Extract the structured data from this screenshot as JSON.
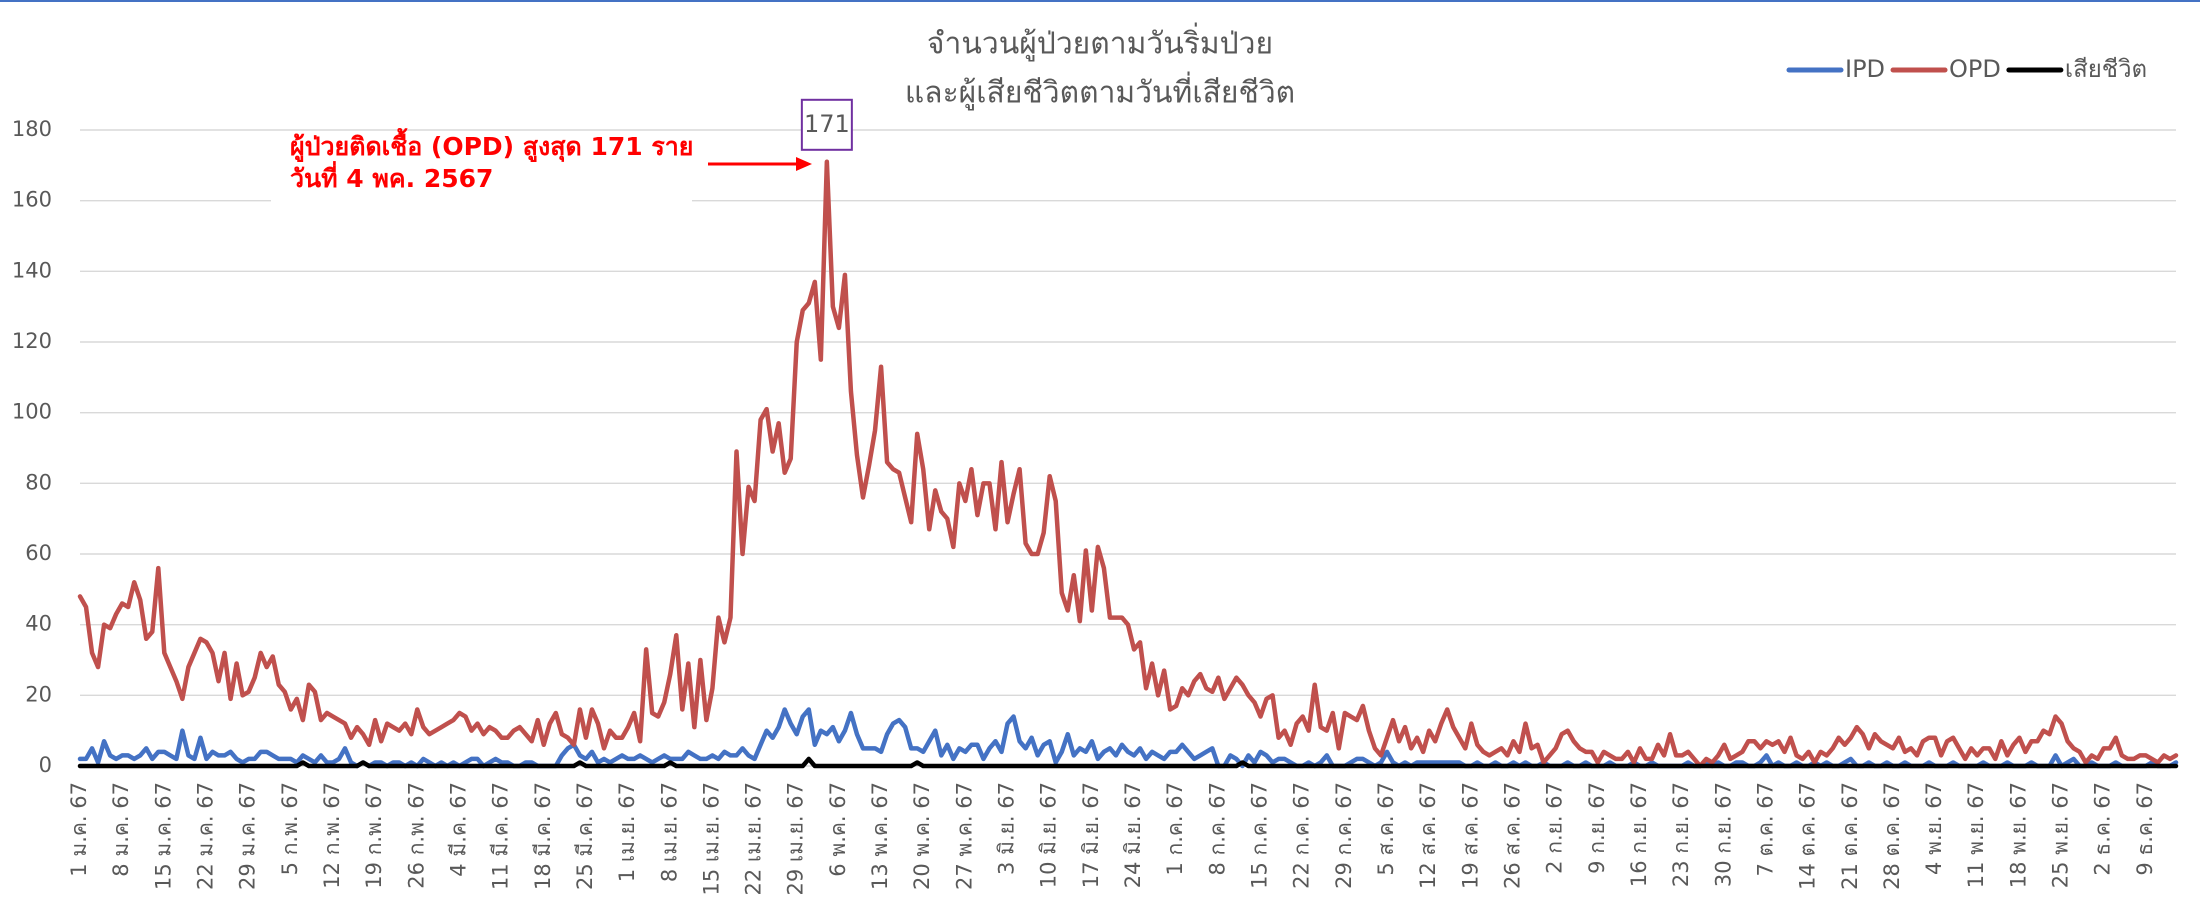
{
  "chart_data": {
    "type": "line",
    "title": [
      "จำนวนผู้ป่วยตามวันริ่มป่วย",
      "และผู้เสียชีวิตตามวันที่เสียชีวิต"
    ],
    "annotation": [
      "ผู้ป่วยติดเชื้อ (OPD) สูงสุด 171 ราย",
      "วันที่ 4 พค. 2567"
    ],
    "legend": "top-right",
    "grid": true,
    "ylim": [
      0,
      180
    ],
    "yticks": [
      0,
      20,
      40,
      60,
      80,
      100,
      120,
      140,
      160,
      180
    ],
    "categories": [
      "1 ม.ค. 67",
      null,
      null,
      null,
      null,
      null,
      null,
      "8 ม.ค. 67",
      null,
      null,
      null,
      null,
      null,
      null,
      "15 ม.ค. 67",
      null,
      null,
      null,
      null,
      null,
      null,
      "22 ม.ค. 67",
      null,
      null,
      null,
      null,
      null,
      null,
      "29 ม.ค. 67",
      null,
      null,
      null,
      null,
      null,
      null,
      "5 ก.พ. 67",
      null,
      null,
      null,
      null,
      null,
      null,
      "12 ก.พ. 67",
      null,
      null,
      null,
      null,
      null,
      null,
      "19 ก.พ. 67",
      null,
      null,
      null,
      null,
      null,
      null,
      "26 ก.พ. 67",
      null,
      null,
      null,
      null,
      null,
      null,
      "4 มี.ค. 67",
      null,
      null,
      null,
      null,
      null,
      null,
      "11 มี.ค. 67",
      null,
      null,
      null,
      null,
      null,
      null,
      "18 มี.ค. 67",
      null,
      null,
      null,
      null,
      null,
      null,
      "25 มี.ค. 67",
      null,
      null,
      null,
      null,
      null,
      null,
      "1 เม.ย. 67",
      null,
      null,
      null,
      null,
      null,
      null,
      "8 เม.ย. 67",
      null,
      null,
      null,
      null,
      null,
      null,
      "15 เม.ย. 67",
      null,
      null,
      null,
      null,
      null,
      null,
      "22 เม.ย. 67",
      null,
      null,
      null,
      null,
      null,
      null,
      "29 เม.ย. 67",
      null,
      null,
      null,
      null,
      null,
      null,
      "6 พ.ค. 67",
      null,
      null,
      null,
      null,
      null,
      null,
      "13 พ.ค. 67",
      null,
      null,
      null,
      null,
      null,
      null,
      "20 พ.ค. 67",
      null,
      null,
      null,
      null,
      null,
      null,
      "27 พ.ค. 67",
      null,
      null,
      null,
      null,
      null,
      null,
      "3 มิ.ย. 67",
      null,
      null,
      null,
      null,
      null,
      null,
      "10 มิ.ย. 67",
      null,
      null,
      null,
      null,
      null,
      null,
      "17 มิ.ย. 67",
      null,
      null,
      null,
      null,
      null,
      null,
      "24 มิ.ย. 67",
      null,
      null,
      null,
      null,
      null,
      null,
      "1 ก.ค. 67",
      null,
      null,
      null,
      null,
      null,
      null,
      "8 ก.ค. 67",
      null,
      null,
      null,
      null,
      null,
      null,
      "15 ก.ค. 67",
      null,
      null,
      null,
      null,
      null,
      null,
      "22 ก.ค. 67",
      null,
      null,
      null,
      null,
      null,
      null,
      "29 ก.ค. 67",
      null,
      null,
      null,
      null,
      null,
      null,
      "5 ส.ค. 67",
      null,
      null,
      null,
      null,
      null,
      null,
      "12 ส.ค. 67",
      null,
      null,
      null,
      null,
      null,
      null,
      "19 ส.ค. 67",
      null,
      null,
      null,
      null,
      null,
      null,
      "26 ส.ค. 67",
      null,
      null,
      null,
      null,
      null,
      null,
      "2 ก.ย. 67",
      null,
      null,
      null,
      null,
      null,
      null,
      "9 ก.ย. 67",
      null,
      null,
      null,
      null,
      null,
      null,
      "16 ก.ย. 67",
      null,
      null,
      null,
      null,
      null,
      null,
      "23 ก.ย. 67",
      null,
      null,
      null,
      null,
      null,
      null,
      "30 ก.ย. 67",
      null,
      null,
      null,
      null,
      null,
      null,
      "7 ต.ค. 67",
      null,
      null,
      null,
      null,
      null,
      null,
      "14 ต.ค. 67",
      null,
      null,
      null,
      null,
      null,
      null,
      "21 ต.ค. 67",
      null,
      null,
      null,
      null,
      null,
      null,
      "28 ต.ค. 67",
      null,
      null,
      null,
      null,
      null,
      null,
      "4 พ.ย. 67",
      null,
      null,
      null,
      null,
      null,
      null,
      "11 พ.ย. 67",
      null,
      null,
      null,
      null,
      null,
      null,
      "18 พ.ย. 67",
      null,
      null,
      null,
      null,
      null,
      null,
      "25 พ.ย. 67",
      null,
      null,
      null,
      null,
      null,
      null,
      "2 ธ.ค. 67",
      null,
      null,
      null,
      null,
      null,
      null,
      "9 ธ.ค. 67",
      null,
      null,
      null,
      null,
      null
    ],
    "series": [
      {
        "name": "IPD",
        "color": "#4472c4",
        "values": [
          2,
          2,
          5,
          1,
          7,
          3,
          2,
          3,
          3,
          2,
          3,
          5,
          2,
          4,
          4,
          3,
          2,
          10,
          3,
          2,
          8,
          2,
          4,
          3,
          3,
          4,
          2,
          1,
          2,
          2,
          4,
          4,
          3,
          2,
          2,
          2,
          1,
          3,
          2,
          1,
          3,
          1,
          1,
          2,
          5,
          1,
          0,
          1,
          0,
          1,
          1,
          0,
          1,
          1,
          0,
          1,
          0,
          2,
          1,
          0,
          1,
          0,
          1,
          0,
          1,
          2,
          2,
          0,
          1,
          2,
          1,
          1,
          0,
          0,
          1,
          1,
          0,
          0,
          0,
          0,
          3,
          5,
          6,
          3,
          2,
          4,
          1,
          2,
          1,
          2,
          3,
          2,
          2,
          3,
          2,
          1,
          2,
          3,
          2,
          2,
          2,
          4,
          3,
          2,
          2,
          3,
          2,
          4,
          3,
          3,
          5,
          3,
          2,
          6,
          10,
          8,
          11,
          16,
          12,
          9,
          14,
          16,
          6,
          10,
          9,
          11,
          7,
          10,
          15,
          9,
          5,
          5,
          5,
          4,
          9,
          12,
          13,
          11,
          5,
          5,
          4,
          7,
          10,
          3,
          6,
          2,
          5,
          4,
          6,
          6,
          2,
          5,
          7,
          4,
          12,
          14,
          7,
          5,
          8,
          3,
          6,
          7,
          1,
          4,
          9,
          3,
          5,
          4,
          7,
          2,
          4,
          5,
          3,
          6,
          4,
          3,
          5,
          2,
          4,
          3,
          2,
          4,
          4,
          6,
          4,
          2,
          3,
          4,
          5,
          0,
          0,
          3,
          2,
          0,
          3,
          1,
          4,
          3,
          1,
          2,
          2,
          1,
          0,
          0,
          1,
          0,
          1,
          3,
          0,
          0,
          0,
          1,
          2,
          2,
          1,
          0,
          1,
          4,
          1,
          0,
          1,
          0,
          1,
          1,
          1,
          1,
          1,
          1,
          1,
          1,
          0,
          0,
          1,
          0,
          0,
          1,
          0,
          0,
          1,
          0,
          1,
          0,
          0,
          1,
          0,
          0,
          0,
          1,
          0,
          0,
          1,
          0,
          0,
          0,
          1,
          0,
          0,
          0,
          1,
          0,
          0,
          1,
          0,
          0,
          0,
          0,
          0,
          1,
          0,
          0,
          1,
          0,
          1,
          0,
          0,
          1,
          1,
          0,
          0,
          1,
          3,
          0,
          1,
          0,
          0,
          1,
          0,
          0,
          1,
          0,
          1,
          0,
          0,
          1,
          2,
          0,
          0,
          1,
          0,
          0,
          1,
          0,
          0,
          1,
          0,
          0,
          0,
          1,
          0,
          0,
          0,
          1,
          0,
          0,
          0,
          0,
          1,
          0,
          0,
          0,
          1,
          0,
          0,
          0,
          1,
          0,
          0,
          0,
          3,
          0,
          1,
          2,
          0,
          0,
          1,
          0,
          0,
          0,
          1,
          0,
          0,
          0,
          0,
          0,
          1,
          0,
          0,
          0,
          1
        ]
      },
      {
        "name": "OPD",
        "color": "#c0504d",
        "values": [
          48,
          45,
          32,
          28,
          40,
          39,
          43,
          46,
          45,
          52,
          47,
          36,
          38,
          56,
          32,
          28,
          24,
          19,
          28,
          32,
          36,
          35,
          32,
          24,
          32,
          19,
          29,
          20,
          21,
          25,
          32,
          28,
          31,
          23,
          21,
          16,
          19,
          13,
          23,
          21,
          13,
          15,
          14,
          13,
          12,
          8,
          11,
          9,
          6,
          13,
          7,
          12,
          11,
          10,
          12,
          9,
          16,
          11,
          9,
          10,
          11,
          12,
          13,
          15,
          14,
          10,
          12,
          9,
          11,
          10,
          8,
          8,
          10,
          11,
          9,
          7,
          13,
          6,
          12,
          15,
          9,
          8,
          6,
          16,
          8,
          16,
          12,
          5,
          10,
          8,
          8,
          11,
          15,
          7,
          33,
          15,
          14,
          18,
          26,
          37,
          16,
          29,
          11,
          30,
          13,
          22,
          42,
          35,
          42,
          89,
          60,
          79,
          75,
          98,
          101,
          89,
          97,
          83,
          87,
          120,
          129,
          131,
          137,
          115,
          171,
          130,
          124,
          139,
          106,
          88,
          76,
          85,
          95,
          113,
          86,
          84,
          83,
          76,
          69,
          94,
          84,
          67,
          78,
          72,
          70,
          62,
          80,
          75,
          84,
          71,
          80,
          80,
          67,
          86,
          69,
          77,
          84,
          63,
          60,
          60,
          66,
          82,
          75,
          49,
          44,
          54,
          41,
          61,
          44,
          62,
          56,
          42,
          42,
          42,
          40,
          33,
          35,
          22,
          29,
          20,
          27,
          16,
          17,
          22,
          20,
          24,
          26,
          22,
          21,
          25,
          19,
          22,
          25,
          23,
          20,
          18,
          14,
          19,
          20,
          8,
          10,
          6,
          12,
          14,
          10,
          23,
          11,
          10,
          15,
          5,
          15,
          14,
          13,
          17,
          10,
          5,
          3,
          8,
          13,
          7,
          11,
          5,
          8,
          4,
          10,
          7,
          12,
          16,
          11,
          8,
          5,
          12,
          6,
          4,
          3,
          4,
          5,
          3,
          7,
          4,
          12,
          5,
          6,
          1,
          3,
          5,
          9,
          10,
          7,
          5,
          4,
          4,
          1,
          4,
          3,
          2,
          2,
          4,
          1,
          5,
          2,
          2,
          6,
          3,
          9,
          3,
          3,
          4,
          2,
          0,
          2,
          1,
          3,
          6,
          2,
          3,
          4,
          7,
          7,
          5,
          7,
          6,
          7,
          4,
          8,
          3,
          2,
          4,
          1,
          4,
          3,
          5,
          8,
          6,
          8,
          11,
          9,
          5,
          9,
          7,
          6,
          5,
          8,
          4,
          5,
          3,
          7,
          8,
          8,
          3,
          7,
          8,
          5,
          2,
          5,
          3,
          5,
          5,
          2,
          7,
          3,
          6,
          8,
          4,
          7,
          7,
          10,
          9,
          14,
          12,
          7,
          5,
          4,
          1,
          3,
          2,
          5,
          5,
          8,
          3,
          2,
          2,
          3,
          3,
          2,
          1,
          3,
          2,
          3
        ]
      },
      {
        "name": "เสียชีวิต",
        "color": "#000000",
        "values": [
          0,
          0,
          0,
          0,
          0,
          0,
          0,
          0,
          0,
          0,
          0,
          0,
          0,
          0,
          0,
          0,
          0,
          0,
          0,
          0,
          0,
          0,
          0,
          0,
          0,
          0,
          0,
          0,
          0,
          0,
          0,
          0,
          0,
          0,
          0,
          0,
          0,
          1,
          0,
          0,
          0,
          0,
          0,
          0,
          0,
          0,
          0,
          1,
          0,
          0,
          0,
          0,
          0,
          0,
          0,
          0,
          0,
          0,
          0,
          0,
          0,
          0,
          0,
          0,
          0,
          0,
          0,
          0,
          0,
          0,
          0,
          0,
          0,
          0,
          0,
          0,
          0,
          0,
          0,
          0,
          0,
          0,
          0,
          1,
          0,
          0,
          0,
          0,
          0,
          0,
          0,
          0,
          0,
          0,
          0,
          0,
          0,
          0,
          1,
          0,
          0,
          0,
          0,
          0,
          0,
          0,
          0,
          0,
          0,
          0,
          0,
          0,
          0,
          0,
          0,
          0,
          0,
          0,
          0,
          0,
          0,
          2,
          0,
          0,
          0,
          0,
          0,
          0,
          0,
          0,
          0,
          0,
          0,
          0,
          0,
          0,
          0,
          0,
          0,
          1,
          0,
          0,
          0,
          0,
          0,
          0,
          0,
          0,
          0,
          0,
          0,
          0,
          0,
          0,
          0,
          0,
          0,
          0,
          0,
          0,
          0,
          0,
          0,
          0,
          0,
          0,
          0,
          0,
          0,
          0,
          0,
          0,
          0,
          0,
          0,
          0,
          0,
          0,
          0,
          0,
          0,
          0,
          0,
          0,
          0,
          0,
          0,
          0,
          0,
          0,
          0,
          0,
          0,
          1,
          0,
          0,
          0,
          0,
          0,
          0,
          0,
          0,
          0,
          0,
          0,
          0,
          0,
          0,
          0,
          0,
          0,
          0,
          0,
          0,
          0,
          0,
          0,
          0,
          0,
          0,
          0,
          0,
          0,
          0,
          0,
          0,
          0,
          0,
          0,
          0,
          0,
          0,
          0,
          0,
          0,
          0,
          0,
          0,
          0,
          0,
          0,
          0,
          0,
          0,
          0,
          0,
          0,
          0,
          0,
          0,
          0,
          0,
          0,
          0,
          0,
          0,
          0,
          0,
          0,
          0,
          0,
          0,
          0,
          0,
          0,
          0,
          0,
          0,
          0,
          0,
          0,
          0,
          0,
          0,
          0,
          0,
          0,
          0,
          0,
          0,
          0,
          0,
          0,
          0,
          0,
          0,
          0,
          0,
          0,
          0,
          0,
          0,
          0,
          0,
          0,
          0,
          0,
          0,
          0,
          0,
          0,
          0,
          0,
          0,
          0,
          0,
          0,
          0,
          0,
          0,
          0,
          0,
          0,
          0,
          0,
          0,
          0,
          0,
          0,
          0,
          0,
          0,
          0,
          0,
          0,
          0,
          0,
          0,
          0,
          0,
          0,
          0,
          0,
          0,
          0,
          0,
          0,
          0,
          0,
          0,
          0,
          0,
          0,
          0,
          0,
          0,
          0,
          0,
          0
        ]
      }
    ]
  }
}
